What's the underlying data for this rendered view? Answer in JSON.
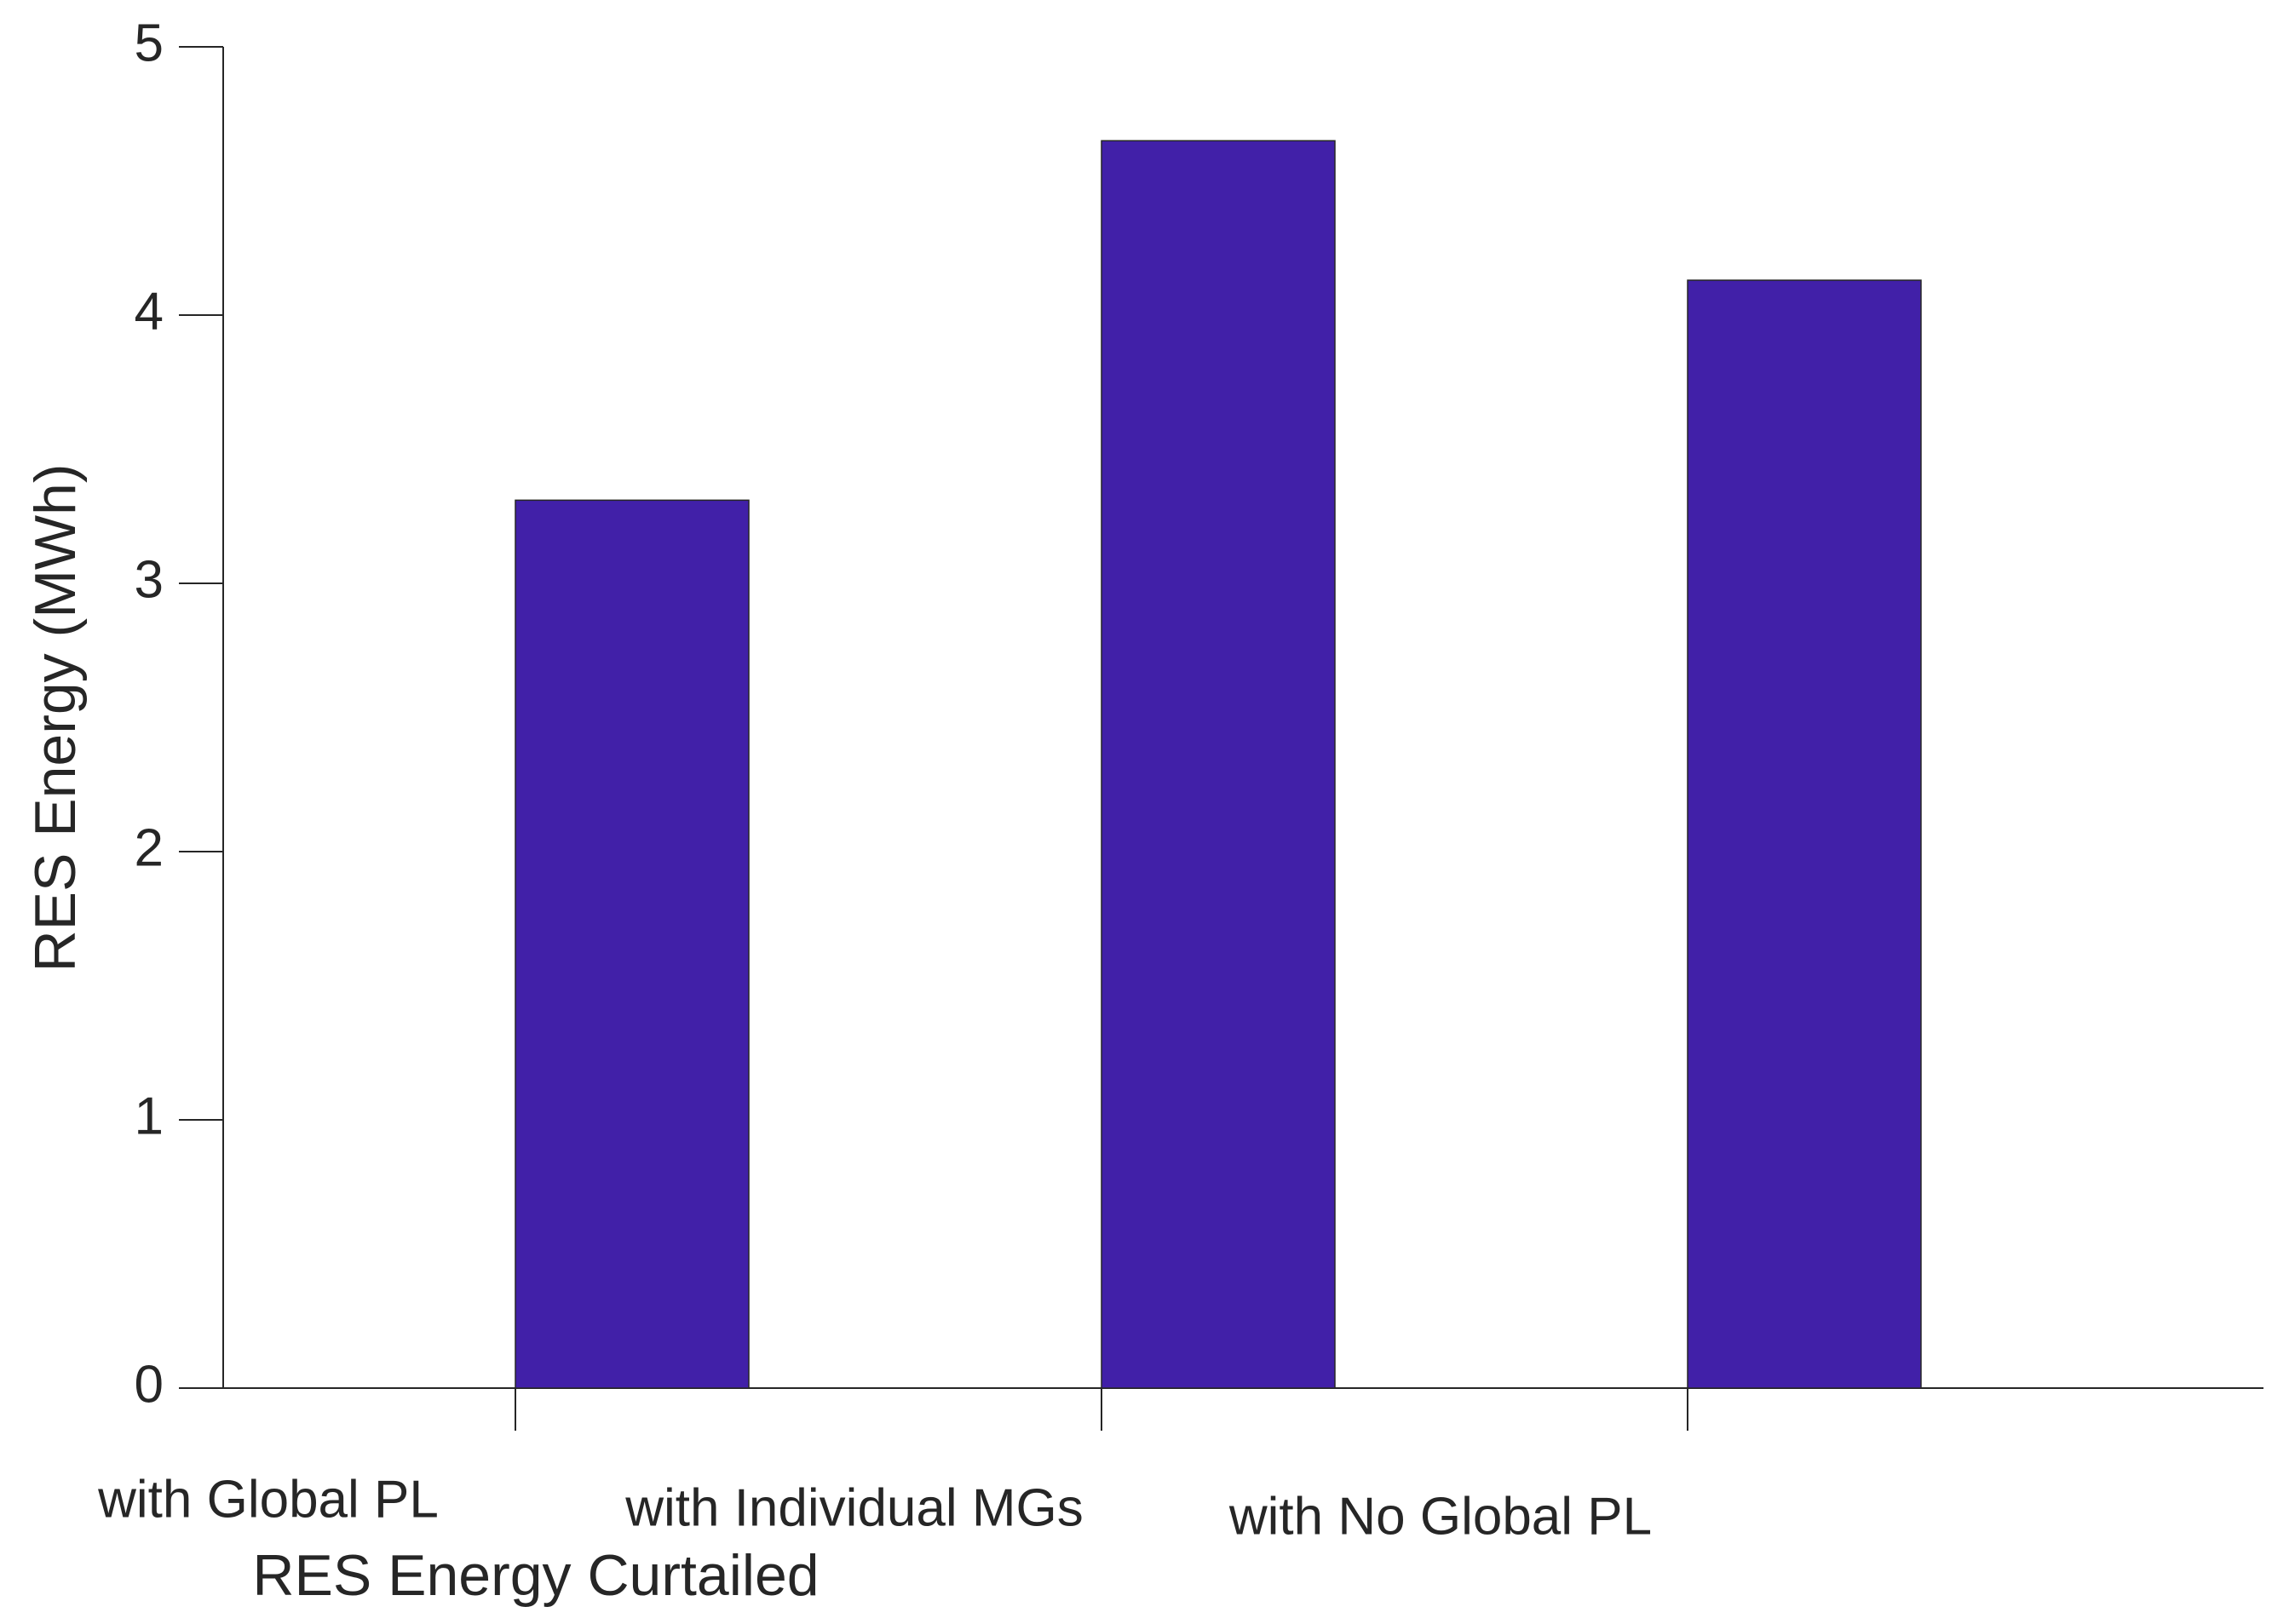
{
  "chart_data": {
    "type": "bar",
    "xlabel": "RES Energy Curtailed",
    "ylabel": "RES Energy (MWh)",
    "categories": [
      "with Global PL",
      "with Individual MGs",
      "with No Global PL"
    ],
    "values": [
      3.31,
      4.65,
      4.13
    ],
    "color": "#4120a8",
    "ylim": [
      0,
      5
    ],
    "yticks": [
      0,
      1,
      2,
      3,
      4,
      5
    ],
    "grid": false
  }
}
